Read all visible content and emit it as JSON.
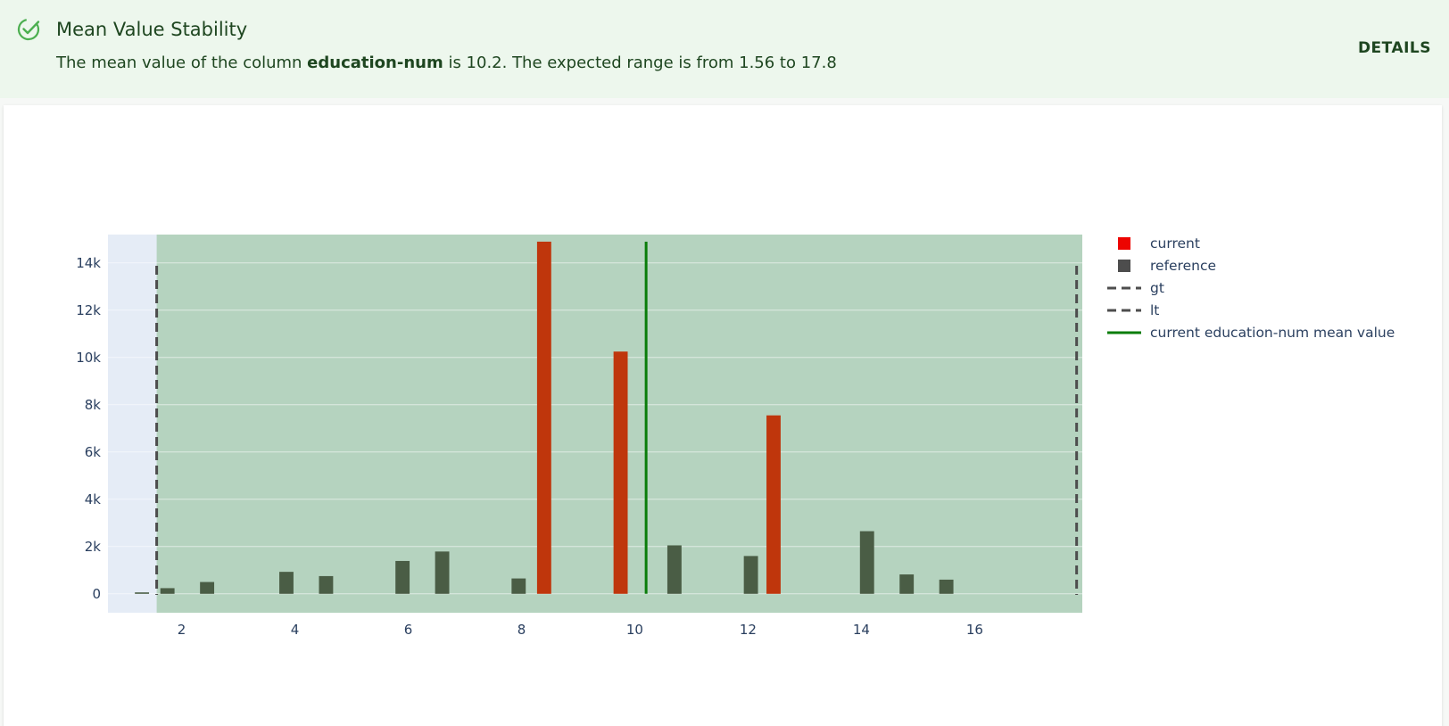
{
  "alert": {
    "title": "Mean Value Stability",
    "desc_prefix": "The mean value of the column ",
    "column": "education-num",
    "desc_suffix": " is 10.2. The expected range is from 1.56 to 17.8",
    "details_label": "DETAILS",
    "icon": "check-circle-icon",
    "accent": "#4caf50"
  },
  "chart_data": {
    "type": "bar",
    "xlim": [
      0.7,
      17.9
    ],
    "ylim": [
      -800,
      15200
    ],
    "x_ticks": [
      2,
      4,
      6,
      8,
      10,
      12,
      14,
      16
    ],
    "x_tick_labels": [
      "2",
      "4",
      "6",
      "8",
      "10",
      "12",
      "14",
      "16"
    ],
    "y_ticks": [
      0,
      2000,
      4000,
      6000,
      8000,
      10000,
      12000,
      14000
    ],
    "y_tick_labels": [
      "0",
      "2k",
      "4k",
      "6k",
      "8k",
      "10k",
      "12k",
      "14k"
    ],
    "expected_range": [
      1.56,
      17.8
    ],
    "mean_value": 10.2,
    "bar_width": 0.25,
    "series": [
      {
        "name": "current",
        "color": "#bf360c",
        "legend_color": "#ed0400",
        "x": [
          8.4,
          9.75,
          12.45
        ],
        "values": [
          14900,
          10250,
          7550
        ]
      },
      {
        "name": "reference",
        "color": "#4a5d45",
        "legend_color": "#4d4d4d",
        "x": [
          1.3,
          1.75,
          2.45,
          3.85,
          4.55,
          5.9,
          6.6,
          7.95,
          10.7,
          12.05,
          14.1,
          14.8,
          15.5
        ],
        "values": [
          60,
          240,
          500,
          930,
          750,
          1390,
          1790,
          650,
          2050,
          1600,
          2650,
          820,
          600
        ]
      }
    ],
    "lines": [
      {
        "name": "gt",
        "x": 1.56,
        "style": "dashed",
        "color": "#4d4d4d"
      },
      {
        "name": "lt",
        "x": 17.8,
        "style": "dashed",
        "color": "#4d4d4d"
      },
      {
        "name": "current education-num mean value",
        "x": 10.2,
        "style": "solid",
        "color": "#0a7d0a"
      }
    ],
    "legend": [
      "current",
      "reference",
      "gt",
      "lt",
      "current education-num mean value"
    ],
    "legend_position": "top-right",
    "grid": true,
    "colors": {
      "plot_bg": "#e5ecf6",
      "range_fill": "#b5d3bf",
      "axis_text": "#2a3f5f"
    }
  }
}
